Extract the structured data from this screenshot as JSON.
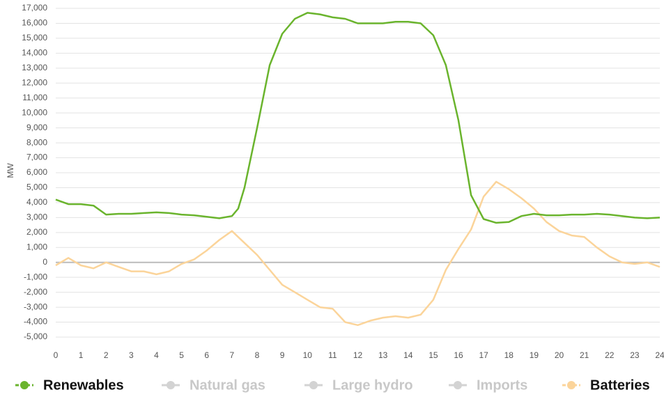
{
  "chart_data": {
    "type": "line",
    "ylabel": "MW",
    "xlim": [
      0,
      24
    ],
    "ylim": [
      -5000,
      17000
    ],
    "xticks": [
      0,
      1,
      2,
      3,
      4,
      5,
      6,
      7,
      8,
      9,
      10,
      11,
      12,
      13,
      14,
      15,
      16,
      17,
      18,
      19,
      20,
      21,
      22,
      23,
      24
    ],
    "yticks": [
      {
        "value": -5000,
        "label": "-5,000"
      },
      {
        "value": -4000,
        "label": "-4,000"
      },
      {
        "value": -3000,
        "label": "-3,000"
      },
      {
        "value": -2000,
        "label": "-2,000"
      },
      {
        "value": -1000,
        "label": "-1,000"
      },
      0,
      {
        "value": 1000,
        "label": "1,000"
      },
      {
        "value": 2000,
        "label": "2,000"
      },
      {
        "value": 3000,
        "label": "3,000"
      },
      {
        "value": 4000,
        "label": "4,000"
      },
      {
        "value": 5000,
        "label": "5,000"
      },
      {
        "value": 6000,
        "label": "6,000"
      },
      {
        "value": 7000,
        "label": "7,000"
      },
      {
        "value": 8000,
        "label": "8,000"
      },
      {
        "value": 9000,
        "label": "9,000"
      },
      {
        "value": 10000,
        "label": "10,000"
      },
      {
        "value": 11000,
        "label": "11,000"
      },
      {
        "value": 12000,
        "label": "12,000"
      },
      {
        "value": 13000,
        "label": "13,000"
      },
      {
        "value": 14000,
        "label": "14,000"
      },
      {
        "value": 15000,
        "label": "15,000"
      },
      {
        "value": 16000,
        "label": "16,000"
      },
      {
        "value": 17000,
        "label": "17,000"
      }
    ],
    "grid": true,
    "x": [
      0,
      0.5,
      1,
      1.5,
      2,
      2.5,
      3,
      3.5,
      4,
      4.5,
      5,
      5.5,
      6,
      6.5,
      7,
      7.25,
      7.5,
      8,
      8.5,
      9,
      9.5,
      10,
      10.5,
      11,
      11.5,
      12,
      12.5,
      13,
      13.5,
      14,
      14.5,
      15,
      15.5,
      16,
      16.5,
      17,
      17.5,
      18,
      18.5,
      19,
      19.5,
      20,
      20.5,
      21,
      21.5,
      22,
      22.5,
      23,
      23.5,
      24
    ],
    "series": [
      {
        "name": "Renewables",
        "color": "#6ab42d",
        "visible": true,
        "values": [
          4200,
          3900,
          3900,
          3800,
          3200,
          3250,
          3250,
          3300,
          3350,
          3300,
          3200,
          3150,
          3050,
          2950,
          3100,
          3600,
          5000,
          9000,
          13200,
          15300,
          16300,
          16700,
          16600,
          16400,
          16300,
          16000,
          16000,
          16000,
          16100,
          16100,
          16000,
          15200,
          13200,
          9500,
          4500,
          2900,
          2650,
          2700,
          3100,
          3250,
          3150,
          3150,
          3200,
          3200,
          3250,
          3200,
          3100,
          3000,
          2950,
          3000
        ]
      },
      {
        "name": "Natural gas",
        "color": "#d3d3d3",
        "visible": false
      },
      {
        "name": "Large hydro",
        "color": "#d3d3d3",
        "visible": false
      },
      {
        "name": "Imports",
        "color": "#d3d3d3",
        "visible": false
      },
      {
        "name": "Batteries",
        "color": "#fbd49a",
        "visible": true,
        "values": [
          -200,
          300,
          -200,
          -400,
          0,
          -300,
          -600,
          -600,
          -800,
          -600,
          -100,
          200,
          800,
          1500,
          2100,
          1700,
          1300,
          500,
          -500,
          -1500,
          -2000,
          -2500,
          -3000,
          -3100,
          -4000,
          -4200,
          -3900,
          -3700,
          -3600,
          -3700,
          -3500,
          -2500,
          -500,
          900,
          2200,
          4400,
          5400,
          4900,
          4300,
          3600,
          2700,
          2100,
          1800,
          1700,
          1000,
          400,
          0,
          -100,
          0,
          -300
        ]
      }
    ]
  }
}
